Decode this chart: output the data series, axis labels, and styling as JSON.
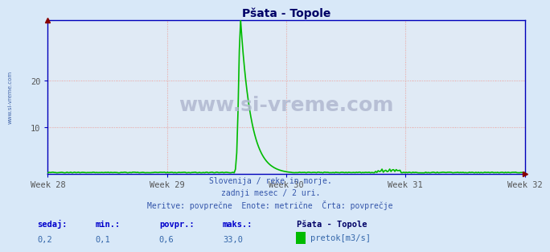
{
  "title": "Pšata - Topole",
  "bg_color": "#d8e8f8",
  "plot_bg_color": "#e0eaf5",
  "grid_color_major": "#c8c8c8",
  "grid_color_pink": "#ffaaaa",
  "axis_color": "#0000bb",
  "line_color_flow": "#00bb00",
  "title_color": "#000066",
  "weeks": [
    "Week 28",
    "Week 29",
    "Week 30",
    "Week 31",
    "Week 32"
  ],
  "week_positions": [
    0,
    84,
    168,
    252,
    336
  ],
  "n_points": 372,
  "peak_index": 150,
  "peak_value": 33.0,
  "base_value": 0.2,
  "ylim_max": 33.0,
  "yticks": [
    10,
    20
  ],
  "footer_line1": "Slovenija / reke in morje.",
  "footer_line2": "zadnji mesec / 2 uri.",
  "footer_line3": "Meritve: povprečne  Enote: metrične  Črta: povprečje",
  "legend_title": "Pšata - Topole",
  "legend_label": "pretok[m3/s]",
  "stats_labels": [
    "sedaj:",
    "min.:",
    "povpr.:",
    "maks.:"
  ],
  "stats_values": [
    "0,2",
    "0,1",
    "0,6",
    "33,0"
  ],
  "watermark": "www.si-vreme.com",
  "watermark_color": "#b0b8d0",
  "side_label": "www.si-vreme.com",
  "side_label_color": "#4466aa",
  "arrow_color": "#880000",
  "tick_color": "#555555",
  "footer_color": "#3355aa",
  "stats_label_color": "#0000cc",
  "stats_val_color": "#3366aa"
}
